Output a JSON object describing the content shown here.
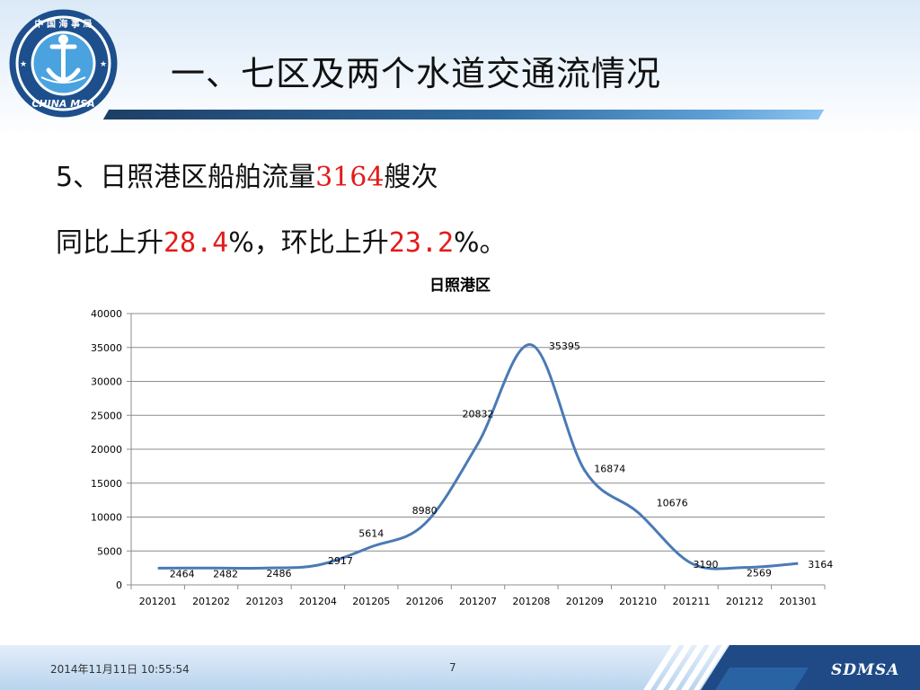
{
  "header": {
    "title": "一、七区及两个水道交通流情况",
    "logo_top_text": "中 国 海 事 局",
    "logo_bottom_text": "CHINA MSA"
  },
  "summary": {
    "line1_prefix": "5、日照港区船舶流量",
    "line1_value": "3164",
    "line1_suffix": "艘次",
    "line2_prefix": "同比上升",
    "line2_yoy": "28.4",
    "line2_mid": "%，环比上升",
    "line2_mom": "23.2",
    "line2_suffix": "%。"
  },
  "chart_data": {
    "type": "line",
    "title": "日照港区",
    "categories": [
      "201201",
      "201202",
      "201203",
      "201204",
      "201205",
      "201206",
      "201207",
      "201208",
      "201209",
      "201210",
      "201211",
      "201212",
      "201301"
    ],
    "series": [
      {
        "values": [
          2464,
          2482,
          2486,
          2917,
          5614,
          8980,
          20832,
          35395,
          16874,
          10676,
          3190,
          2569,
          3164
        ]
      }
    ],
    "yticks": [
      0,
      5000,
      10000,
      15000,
      20000,
      25000,
      30000,
      35000,
      40000
    ],
    "ylim": [
      0,
      40000
    ],
    "grid": true,
    "smooth": true,
    "data_labels": true,
    "colors": {
      "line": "#4a7ab5",
      "grid": "#8c8c8c",
      "highlight": "#e31b1b"
    }
  },
  "footer": {
    "datetime": "2014年11月11日  10:55:54",
    "page": "7",
    "brand": "SDMSA"
  }
}
